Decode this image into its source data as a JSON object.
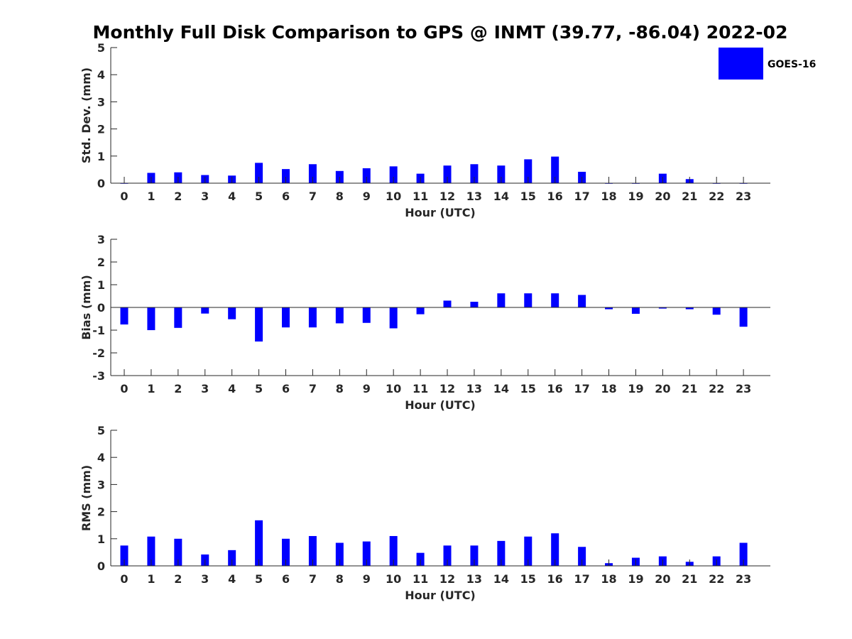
{
  "chart_data": {
    "type": "bar",
    "title": "Monthly Full Disk Comparison to GPS @ INMT (39.77, -86.04) 2022-02",
    "legend": {
      "label": "GOES-16",
      "color": "#0000ff",
      "placement": "top-right"
    },
    "categories": [
      "0",
      "1",
      "2",
      "3",
      "4",
      "5",
      "6",
      "7",
      "8",
      "9",
      "10",
      "11",
      "12",
      "13",
      "14",
      "15",
      "16",
      "17",
      "18",
      "19",
      "20",
      "21",
      "22",
      "23"
    ],
    "panels": [
      {
        "name": "std-dev",
        "ylabel": "Std. Dev. (mm)",
        "xlabel": "Hour (UTC)",
        "ylim": [
          0,
          5
        ],
        "yticks": [
          "0",
          "1",
          "2",
          "3",
          "4",
          "5"
        ],
        "series": [
          {
            "name": "GOES-16",
            "values": [
              0,
              0.38,
              0.4,
              0.3,
              0.28,
              0.75,
              0.52,
              0.7,
              0.45,
              0.55,
              0.62,
              0.35,
              0.65,
              0.7,
              0.65,
              0.88,
              0.98,
              0.42,
              0,
              0,
              0.35,
              0.15,
              0,
              0
            ]
          }
        ]
      },
      {
        "name": "bias",
        "ylabel": "Bias (mm)",
        "xlabel": "Hour (UTC)",
        "ylim": [
          -3,
          3
        ],
        "yticks": [
          "-3",
          "-2",
          "-1",
          "0",
          "1",
          "2",
          "3"
        ],
        "series": [
          {
            "name": "GOES-16",
            "values": [
              -0.75,
              -1.0,
              -0.9,
              -0.27,
              -0.52,
              -1.5,
              -0.88,
              -0.88,
              -0.7,
              -0.68,
              -0.92,
              -0.3,
              0.3,
              0.25,
              0.62,
              0.62,
              0.62,
              0.55,
              -0.08,
              -0.28,
              -0.05,
              -0.08,
              -0.32,
              -0.85
            ]
          }
        ]
      },
      {
        "name": "rms",
        "ylabel": "RMS (mm)",
        "xlabel": "Hour (UTC)",
        "ylim": [
          0,
          5
        ],
        "yticks": [
          "0",
          "1",
          "2",
          "3",
          "4",
          "5"
        ],
        "series": [
          {
            "name": "GOES-16",
            "values": [
              0.75,
              1.08,
              1.0,
              0.42,
              0.58,
              1.68,
              1.0,
              1.1,
              0.85,
              0.9,
              1.1,
              0.48,
              0.75,
              0.75,
              0.92,
              1.08,
              1.2,
              0.7,
              0.1,
              0.3,
              0.35,
              0.15,
              0.35,
              0.85
            ]
          }
        ]
      }
    ]
  }
}
